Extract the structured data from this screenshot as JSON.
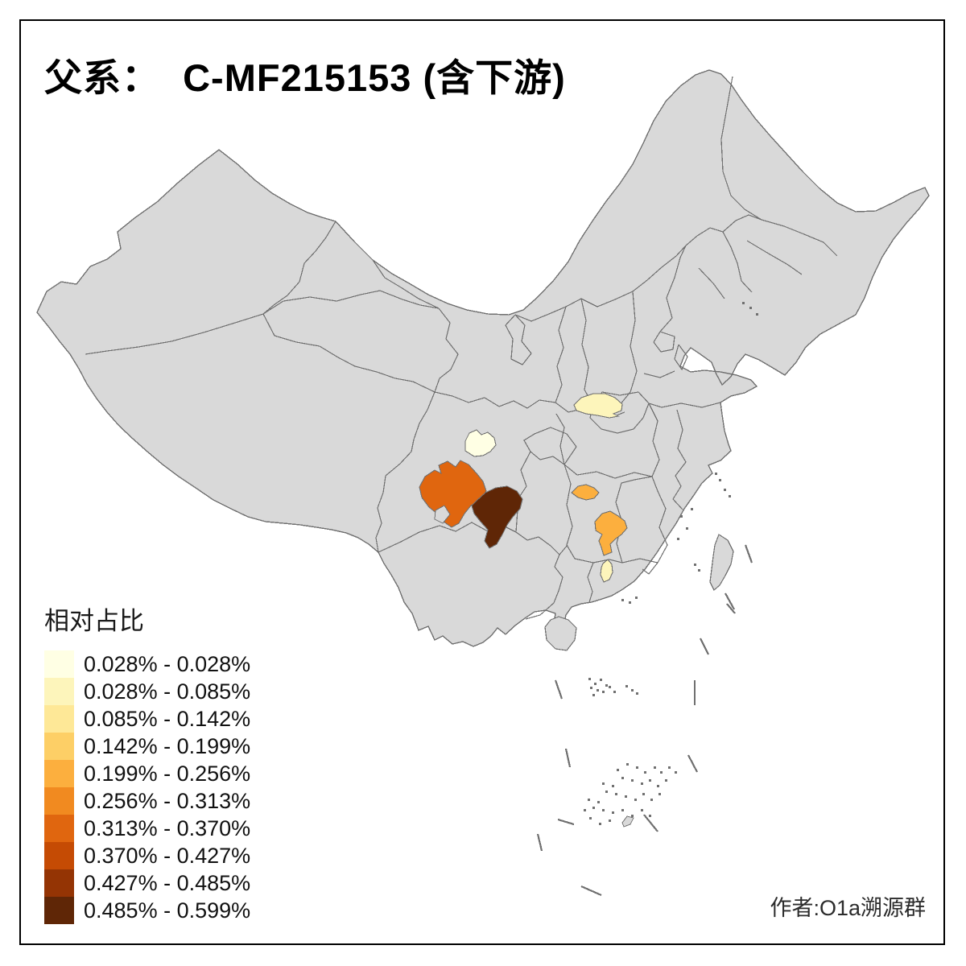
{
  "title": "父系：  C-MF215153 (含下游)",
  "attribution": "作者:O1a溯源群",
  "legend": {
    "title": "相对占比",
    "items": [
      {
        "label": "0.028% - 0.028%",
        "color": "#FFFFE4"
      },
      {
        "label": "0.028% - 0.085%",
        "color": "#FDF5BB"
      },
      {
        "label": "0.085% - 0.142%",
        "color": "#FEE897"
      },
      {
        "label": "0.142% - 0.199%",
        "color": "#FDCF66"
      },
      {
        "label": "0.199% - 0.256%",
        "color": "#FCAF3E"
      },
      {
        "label": "0.256% - 0.313%",
        "color": "#F18A20"
      },
      {
        "label": "0.313% - 0.370%",
        "color": "#E0660F"
      },
      {
        "label": "0.370% - 0.427%",
        "color": "#C54B04"
      },
      {
        "label": "0.427% - 0.485%",
        "color": "#943404"
      },
      {
        "label": "0.485% - 0.599%",
        "color": "#5F2606"
      }
    ]
  },
  "map": {
    "background": "#FFFFFF",
    "land_fill": "#D9D9D9",
    "border_color": "#707070",
    "regions": [
      {
        "id": "region-1",
        "legend_class": 1,
        "color": "#FFFFE4",
        "range": "0.028% - 0.028%"
      },
      {
        "id": "region-2",
        "legend_class": 2,
        "color": "#FDF5BB",
        "range": "0.028% - 0.085%"
      },
      {
        "id": "region-3",
        "legend_class": 7,
        "color": "#E0660F",
        "range": "0.313% - 0.370%"
      },
      {
        "id": "region-4",
        "legend_class": 10,
        "color": "#5F2606",
        "range": "0.485% - 0.599%"
      },
      {
        "id": "region-5",
        "legend_class": 5,
        "color": "#FCAF3E",
        "range": "0.199% - 0.256%"
      },
      {
        "id": "region-6",
        "legend_class": 5,
        "color": "#FCAF3E",
        "range": "0.199% - 0.256%"
      },
      {
        "id": "region-7",
        "legend_class": 2,
        "color": "#FDF5BB",
        "range": "0.028% - 0.085%"
      }
    ]
  }
}
